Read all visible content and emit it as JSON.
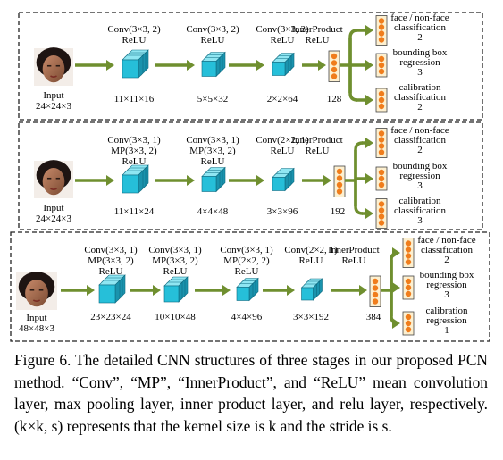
{
  "stages": [
    {
      "input": {
        "label": "Input",
        "size": "24×24×3"
      },
      "layers": [
        {
          "op": "Conv(3×3, 2)",
          "op2": "",
          "act": "ReLU",
          "output": "11×11×16"
        },
        {
          "op": "Conv(3×3, 2)",
          "op2": "",
          "act": "ReLU",
          "output": "5×5×32"
        },
        {
          "op": "Conv(3×3, 2)",
          "op2": "",
          "act": "ReLU",
          "output": "2×2×64"
        }
      ],
      "inner_product": {
        "op": "InnerProduct",
        "act": "ReLU",
        "output": "128"
      },
      "outputs": [
        {
          "line1": "face / non-face",
          "line2": "classification",
          "num": "2"
        },
        {
          "line1": "bounding box",
          "line2": "regression",
          "num": "3"
        },
        {
          "line1": "calibration",
          "line2": "classification",
          "num": "2"
        }
      ]
    },
    {
      "input": {
        "label": "Input",
        "size": "24×24×3"
      },
      "layers": [
        {
          "op": "Conv(3×3, 1)",
          "op2": "MP(3×3, 2)",
          "act": "ReLU",
          "output": "11×11×24"
        },
        {
          "op": "Conv(3×3, 1)",
          "op2": "MP(3×3, 2)",
          "act": "ReLU",
          "output": "4×4×48"
        },
        {
          "op": "Conv(2×2, 1)",
          "op2": "",
          "act": "ReLU",
          "output": "3×3×96"
        }
      ],
      "inner_product": {
        "op": "InnerProduct",
        "act": "ReLU",
        "output": "192"
      },
      "outputs": [
        {
          "line1": "face / non-face",
          "line2": "classification",
          "num": "2"
        },
        {
          "line1": "bounding box",
          "line2": "regression",
          "num": "3"
        },
        {
          "line1": "calibration",
          "line2": "classification",
          "num": "3"
        }
      ]
    },
    {
      "input": {
        "label": "Input",
        "size": "48×48×3"
      },
      "layers": [
        {
          "op": "Conv(3×3, 1)",
          "op2": "MP(3×3, 2)",
          "act": "ReLU",
          "output": "23×23×24"
        },
        {
          "op": "Conv(3×3, 1)",
          "op2": "MP(3×3, 2)",
          "act": "ReLU",
          "output": "10×10×48"
        },
        {
          "op": "Conv(3×3, 1)",
          "op2": "MP(2×2, 2)",
          "act": "ReLU",
          "output": "4×4×96"
        },
        {
          "op": "Conv(2×2, 1)",
          "op2": "",
          "act": "ReLU",
          "output": "3×3×192"
        }
      ],
      "inner_product": {
        "op": "InnerProduct",
        "act": "ReLU",
        "output": "384"
      },
      "outputs": [
        {
          "line1": "face / non-face",
          "line2": "classification",
          "num": "2"
        },
        {
          "line1": "bounding box",
          "line2": "regression",
          "num": "3"
        },
        {
          "line1": "calibration",
          "line2": "regression",
          "num": "1"
        }
      ]
    }
  ],
  "caption": "Figure 6. The detailed CNN structures of three stages in our proposed PCN method. “Conv”, “MP”, “InnerProduct”, and “ReLU” mean convolution layer, max pooling layer, inner product layer, and relu layer, respectively. (k×k, s) represents that the kernel size is k and the stride is s.",
  "colors": {
    "arrow": "#6f8f2f",
    "block_face": "#26bfd9",
    "block_top": "#8fe6f2",
    "block_side": "#1a93ad",
    "node": "#f07d1c",
    "node_box": "#fdf0d0"
  }
}
